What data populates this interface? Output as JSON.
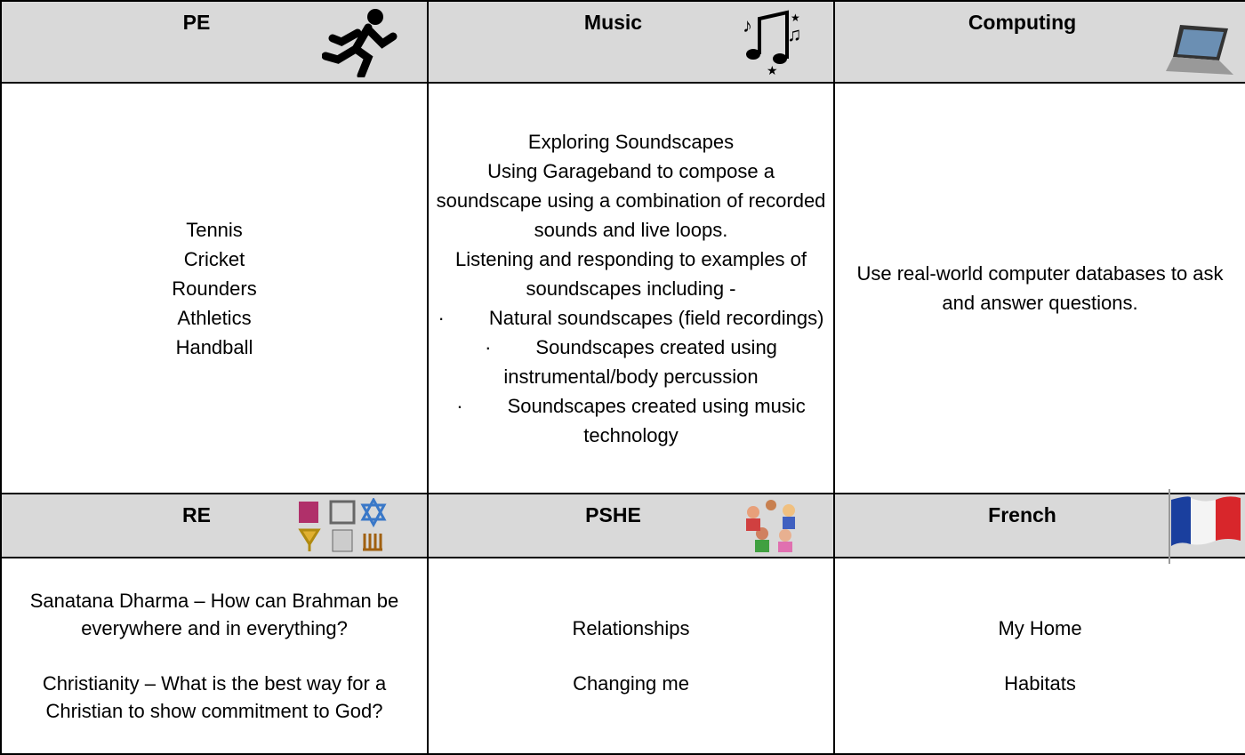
{
  "table": {
    "rows": [
      {
        "kind": "header",
        "cells": [
          "PE",
          "Music",
          "Computing"
        ]
      },
      {
        "kind": "body",
        "cells": [
          {
            "lines": [
              "Tennis",
              "Cricket",
              "Rounders",
              "Athletics",
              "Handball"
            ]
          },
          {
            "title": "Exploring Soundscapes",
            "paragraphs": [
              "Using Garageband to compose a soundscape using a combination of recorded sounds and live loops.",
              "Listening and responding to examples of soundscapes including -"
            ],
            "bullets": [
              {
                "marker": "·",
                "text": "Natural soundscapes (field recordings)"
              },
              {
                "marker": "·",
                "text": "Soundscapes created using instrumental/body percussion"
              },
              {
                "marker": "·",
                "text": "Soundscapes created using music technology"
              }
            ]
          },
          {
            "lines": [
              "Use real-world computer databases to ask and answer questions."
            ]
          }
        ]
      },
      {
        "kind": "header",
        "cells": [
          "RE",
          "PSHE",
          "French"
        ]
      },
      {
        "kind": "body",
        "cells": [
          {
            "paragraphs": [
              "Sanatana Dharma – How can Brahman be everywhere and in everything?",
              "Christianity – What is the best way for a Christian to show commitment to God?"
            ]
          },
          {
            "paragraphs": [
              "Relationships",
              "Changing me"
            ]
          },
          {
            "paragraphs": [
              "My Home",
              "Habitats"
            ]
          }
        ]
      }
    ]
  }
}
